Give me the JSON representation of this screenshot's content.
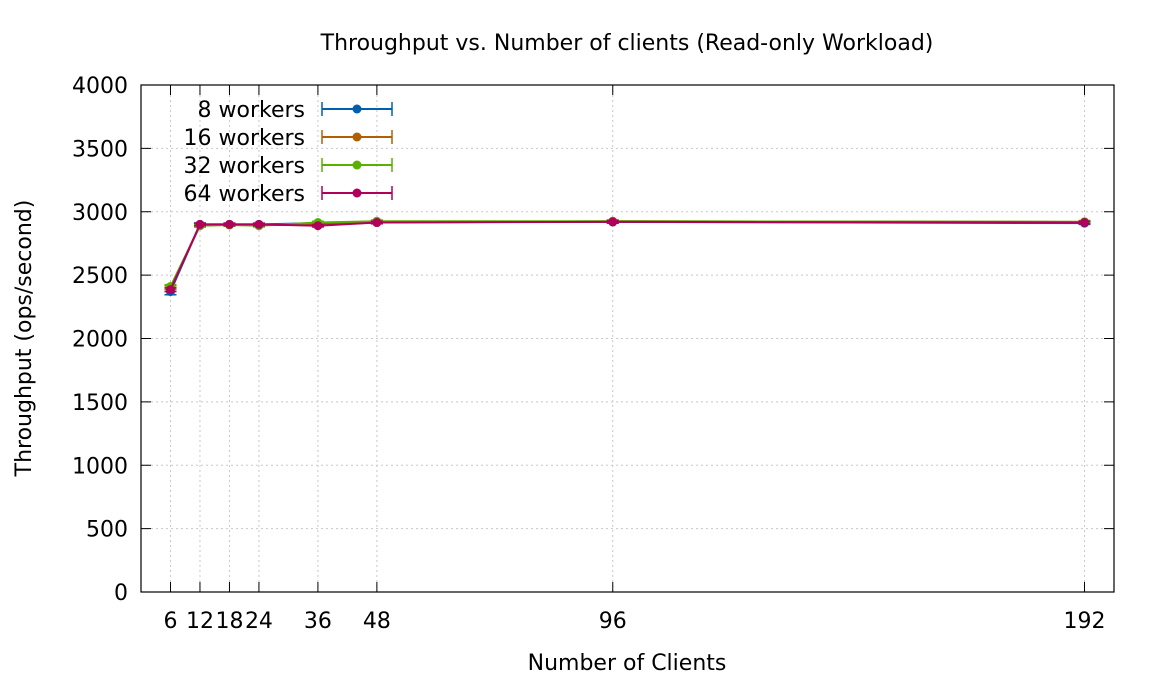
{
  "chart_data": {
    "type": "line",
    "title": "Throughput vs. Number of clients (Read-only Workload)",
    "xlabel": "Number of Clients",
    "ylabel": "Throughput (ops/second)",
    "x": [
      6,
      12,
      18,
      24,
      36,
      48,
      96,
      192
    ],
    "x_tick_labels": [
      "6",
      "12",
      "18",
      "24",
      "36",
      "48",
      "96",
      "192"
    ],
    "ylim": [
      0,
      4000
    ],
    "y_ticks": [
      0,
      500,
      1000,
      1500,
      2000,
      2500,
      3000,
      3500,
      4000
    ],
    "grid": true,
    "legend_position": "top-left",
    "error_bars": true,
    "series": [
      {
        "name": "8 workers",
        "color": "#0060ad",
        "values": [
          2370,
          2900,
          2900,
          2900,
          2910,
          2920,
          2920,
          2910
        ],
        "errors": [
          25,
          12,
          10,
          10,
          10,
          10,
          10,
          10
        ]
      },
      {
        "name": "16 workers",
        "color": "#b06000",
        "values": [
          2400,
          2890,
          2900,
          2895,
          2895,
          2915,
          2925,
          2920
        ],
        "errors": [
          15,
          10,
          10,
          10,
          10,
          10,
          10,
          10
        ]
      },
      {
        "name": "32 workers",
        "color": "#58b000",
        "values": [
          2410,
          2890,
          2895,
          2890,
          2915,
          2925,
          2925,
          2920
        ],
        "errors": [
          15,
          10,
          10,
          10,
          10,
          10,
          10,
          10
        ]
      },
      {
        "name": "64 workers",
        "color": "#b0005c",
        "values": [
          2385,
          2900,
          2900,
          2900,
          2890,
          2915,
          2920,
          2915
        ],
        "errors": [
          15,
          10,
          10,
          10,
          10,
          10,
          10,
          10
        ]
      }
    ]
  }
}
